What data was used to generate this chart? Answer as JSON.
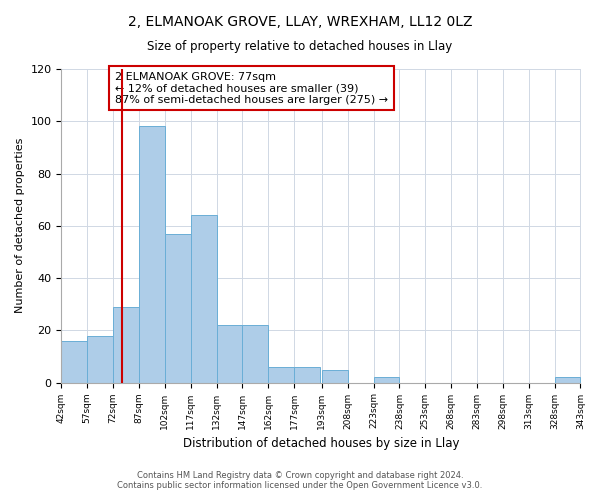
{
  "title": "2, ELMANOAK GROVE, LLAY, WREXHAM, LL12 0LZ",
  "subtitle": "Size of property relative to detached houses in Llay",
  "xlabel": "Distribution of detached houses by size in Llay",
  "ylabel": "Number of detached properties",
  "bar_edges": [
    42,
    57,
    72,
    87,
    102,
    117,
    132,
    147,
    162,
    177,
    193,
    208,
    223,
    238,
    253,
    268,
    283,
    298,
    313,
    328,
    343
  ],
  "bar_heights": [
    16,
    18,
    29,
    98,
    57,
    64,
    22,
    22,
    6,
    6,
    5,
    0,
    2,
    0,
    0,
    0,
    0,
    0,
    0,
    2
  ],
  "bar_color": "#aecde8",
  "bar_edgecolor": "#6aaed6",
  "vline_x": 77,
  "vline_color": "#cc0000",
  "annotation_text": "2 ELMANOAK GROVE: 77sqm\n← 12% of detached houses are smaller (39)\n87% of semi-detached houses are larger (275) →",
  "annotation_box_edgecolor": "#cc0000",
  "annotation_box_facecolor": "white",
  "ylim": [
    0,
    120
  ],
  "yticks": [
    0,
    20,
    40,
    60,
    80,
    100,
    120
  ],
  "tick_labels": [
    "42sqm",
    "57sqm",
    "72sqm",
    "87sqm",
    "102sqm",
    "117sqm",
    "132sqm",
    "147sqm",
    "162sqm",
    "177sqm",
    "193sqm",
    "208sqm",
    "223sqm",
    "238sqm",
    "253sqm",
    "268sqm",
    "283sqm",
    "298sqm",
    "313sqm",
    "328sqm",
    "343sqm"
  ],
  "footer": "Contains HM Land Registry data © Crown copyright and database right 2024.\nContains public sector information licensed under the Open Government Licence v3.0.",
  "grid_color": "#d0d8e4"
}
